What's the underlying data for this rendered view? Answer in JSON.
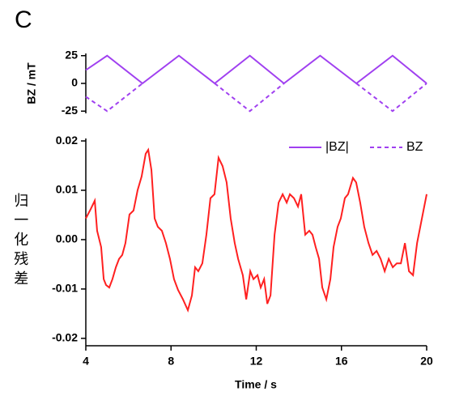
{
  "panel_label": "C",
  "chart_data": [
    {
      "type": "line",
      "ylabel": "BZ / mT",
      "ylim": [
        -27,
        27
      ],
      "yticks": [
        -25,
        0,
        25
      ],
      "xlim": [
        4,
        20
      ],
      "legend": "upper right",
      "x": [
        4,
        5,
        6.66,
        8.37,
        10.05,
        11.7,
        13.3,
        15,
        16.7,
        18.4,
        20
      ],
      "series": [
        {
          "name": "|BZ|",
          "color": "#a040f0",
          "dashed": false,
          "values": [
            12,
            25,
            0,
            25,
            0,
            25,
            0,
            25,
            0,
            25,
            0
          ]
        },
        {
          "name": "BZ",
          "color": "#a040f0",
          "dashed": true,
          "values": [
            -12,
            -25,
            0,
            null,
            0,
            -25,
            0,
            null,
            0,
            -25,
            0
          ]
        }
      ]
    },
    {
      "type": "line",
      "ylabel": "归一化残差",
      "xlabel": "Time / s",
      "xlim": [
        4,
        20
      ],
      "xticks": [
        4,
        8,
        12,
        16,
        20
      ],
      "ylim": [
        -0.0215,
        0.0205
      ],
      "yticks": [
        -0.02,
        -0.01,
        {
          "value": 0,
          "label": "0.00"
        },
        0.01,
        0.02
      ],
      "x": [
        4.0,
        4.23,
        4.42,
        4.53,
        4.72,
        4.84,
        4.95,
        5.1,
        5.25,
        5.41,
        5.56,
        5.71,
        5.86,
        6.05,
        6.24,
        6.43,
        6.62,
        6.81,
        6.93,
        7.08,
        7.23,
        7.38,
        7.57,
        7.76,
        7.95,
        8.14,
        8.33,
        8.56,
        8.79,
        8.98,
        9.13,
        9.28,
        9.47,
        9.66,
        9.85,
        10.04,
        10.23,
        10.42,
        10.61,
        10.8,
        10.99,
        11.15,
        11.37,
        11.53,
        11.72,
        11.87,
        12.06,
        12.21,
        12.37,
        12.52,
        12.67,
        12.86,
        13.05,
        13.24,
        13.43,
        13.58,
        13.77,
        13.96,
        14.11,
        14.3,
        14.49,
        14.64,
        14.79,
        14.95,
        15.1,
        15.29,
        15.48,
        15.63,
        15.82,
        15.97,
        16.16,
        16.31,
        16.54,
        16.69,
        16.88,
        17.07,
        17.27,
        17.46,
        17.65,
        17.84,
        18.03,
        18.22,
        18.41,
        18.6,
        18.79,
        18.98,
        19.17,
        19.36,
        19.55,
        19.7,
        19.85,
        20.0
      ],
      "series": [
        {
          "color": "#ff2020",
          "values": [
            0.0043,
            0.0062,
            0.0079,
            0.0018,
            -0.0015,
            -0.008,
            -0.0092,
            -0.0097,
            -0.008,
            -0.0056,
            -0.0039,
            -0.0031,
            -0.0007,
            0.0051,
            0.0059,
            0.01,
            0.0128,
            0.0174,
            0.0182,
            0.0141,
            0.0043,
            0.0026,
            0.0018,
            -0.0007,
            -0.0039,
            -0.008,
            -0.0102,
            -0.0121,
            -0.0143,
            -0.0113,
            -0.0056,
            -0.0064,
            -0.0048,
            0.001,
            0.0084,
            0.0092,
            0.0166,
            0.0149,
            0.0116,
            0.0043,
            -0.0007,
            -0.0039,
            -0.0072,
            -0.0121,
            -0.0064,
            -0.008,
            -0.0072,
            -0.0097,
            -0.008,
            -0.013,
            -0.0113,
            0.001,
            0.0075,
            0.0092,
            0.0075,
            0.0092,
            0.0084,
            0.0067,
            0.0092,
            0.001,
            0.0018,
            0.001,
            -0.0015,
            -0.0039,
            -0.0097,
            -0.0121,
            -0.008,
            -0.0015,
            0.0026,
            0.0043,
            0.0084,
            0.0092,
            0.0125,
            0.0116,
            0.0075,
            0.0026,
            -0.0007,
            -0.0031,
            -0.0023,
            -0.0039,
            -0.0064,
            -0.0039,
            -0.0056,
            -0.0048,
            -0.0048,
            -0.0007,
            -0.0064,
            -0.0072,
            -0.0007,
            0.0026,
            0.0059,
            0.0092
          ]
        }
      ]
    }
  ]
}
